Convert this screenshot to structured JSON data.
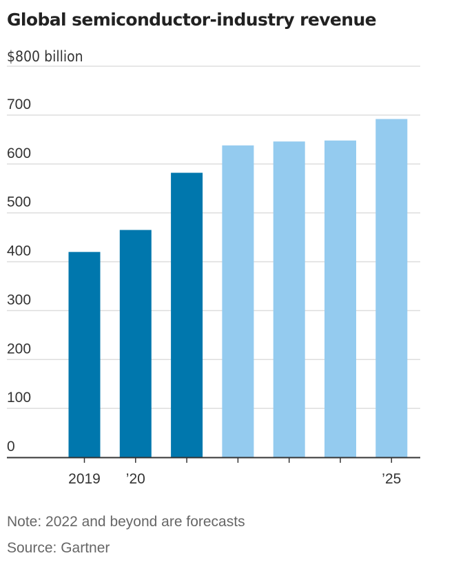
{
  "title": "Global semiconductor-industry revenue",
  "unit_label": "$800 billion",
  "note": "Note: 2022 and beyond are forecasts",
  "source": "Source: Gartner",
  "colors": {
    "actual": "#0077ad",
    "forecast": "#94cbef",
    "grid": "#dddddd",
    "axis": "#333333"
  },
  "chart_data": {
    "type": "bar",
    "title": "Global semiconductor-industry revenue",
    "ylabel": "$ billion",
    "xlabel": "",
    "ylim": [
      0,
      800
    ],
    "yticks": [
      0,
      100,
      200,
      300,
      400,
      500,
      600,
      700,
      800
    ],
    "ytick_labels": [
      "0",
      "100",
      "200",
      "300",
      "400",
      "500",
      "600",
      "700",
      "$800 billion"
    ],
    "categories": [
      "2019",
      "2020",
      "2021",
      "2022",
      "2023",
      "2024",
      "2025"
    ],
    "xtick_labels": [
      "2019",
      "’20",
      "",
      "",
      "",
      "",
      "’25"
    ],
    "values": [
      420,
      465,
      582,
      638,
      646,
      648,
      692
    ],
    "forecast": [
      false,
      false,
      false,
      true,
      true,
      true,
      true
    ]
  }
}
